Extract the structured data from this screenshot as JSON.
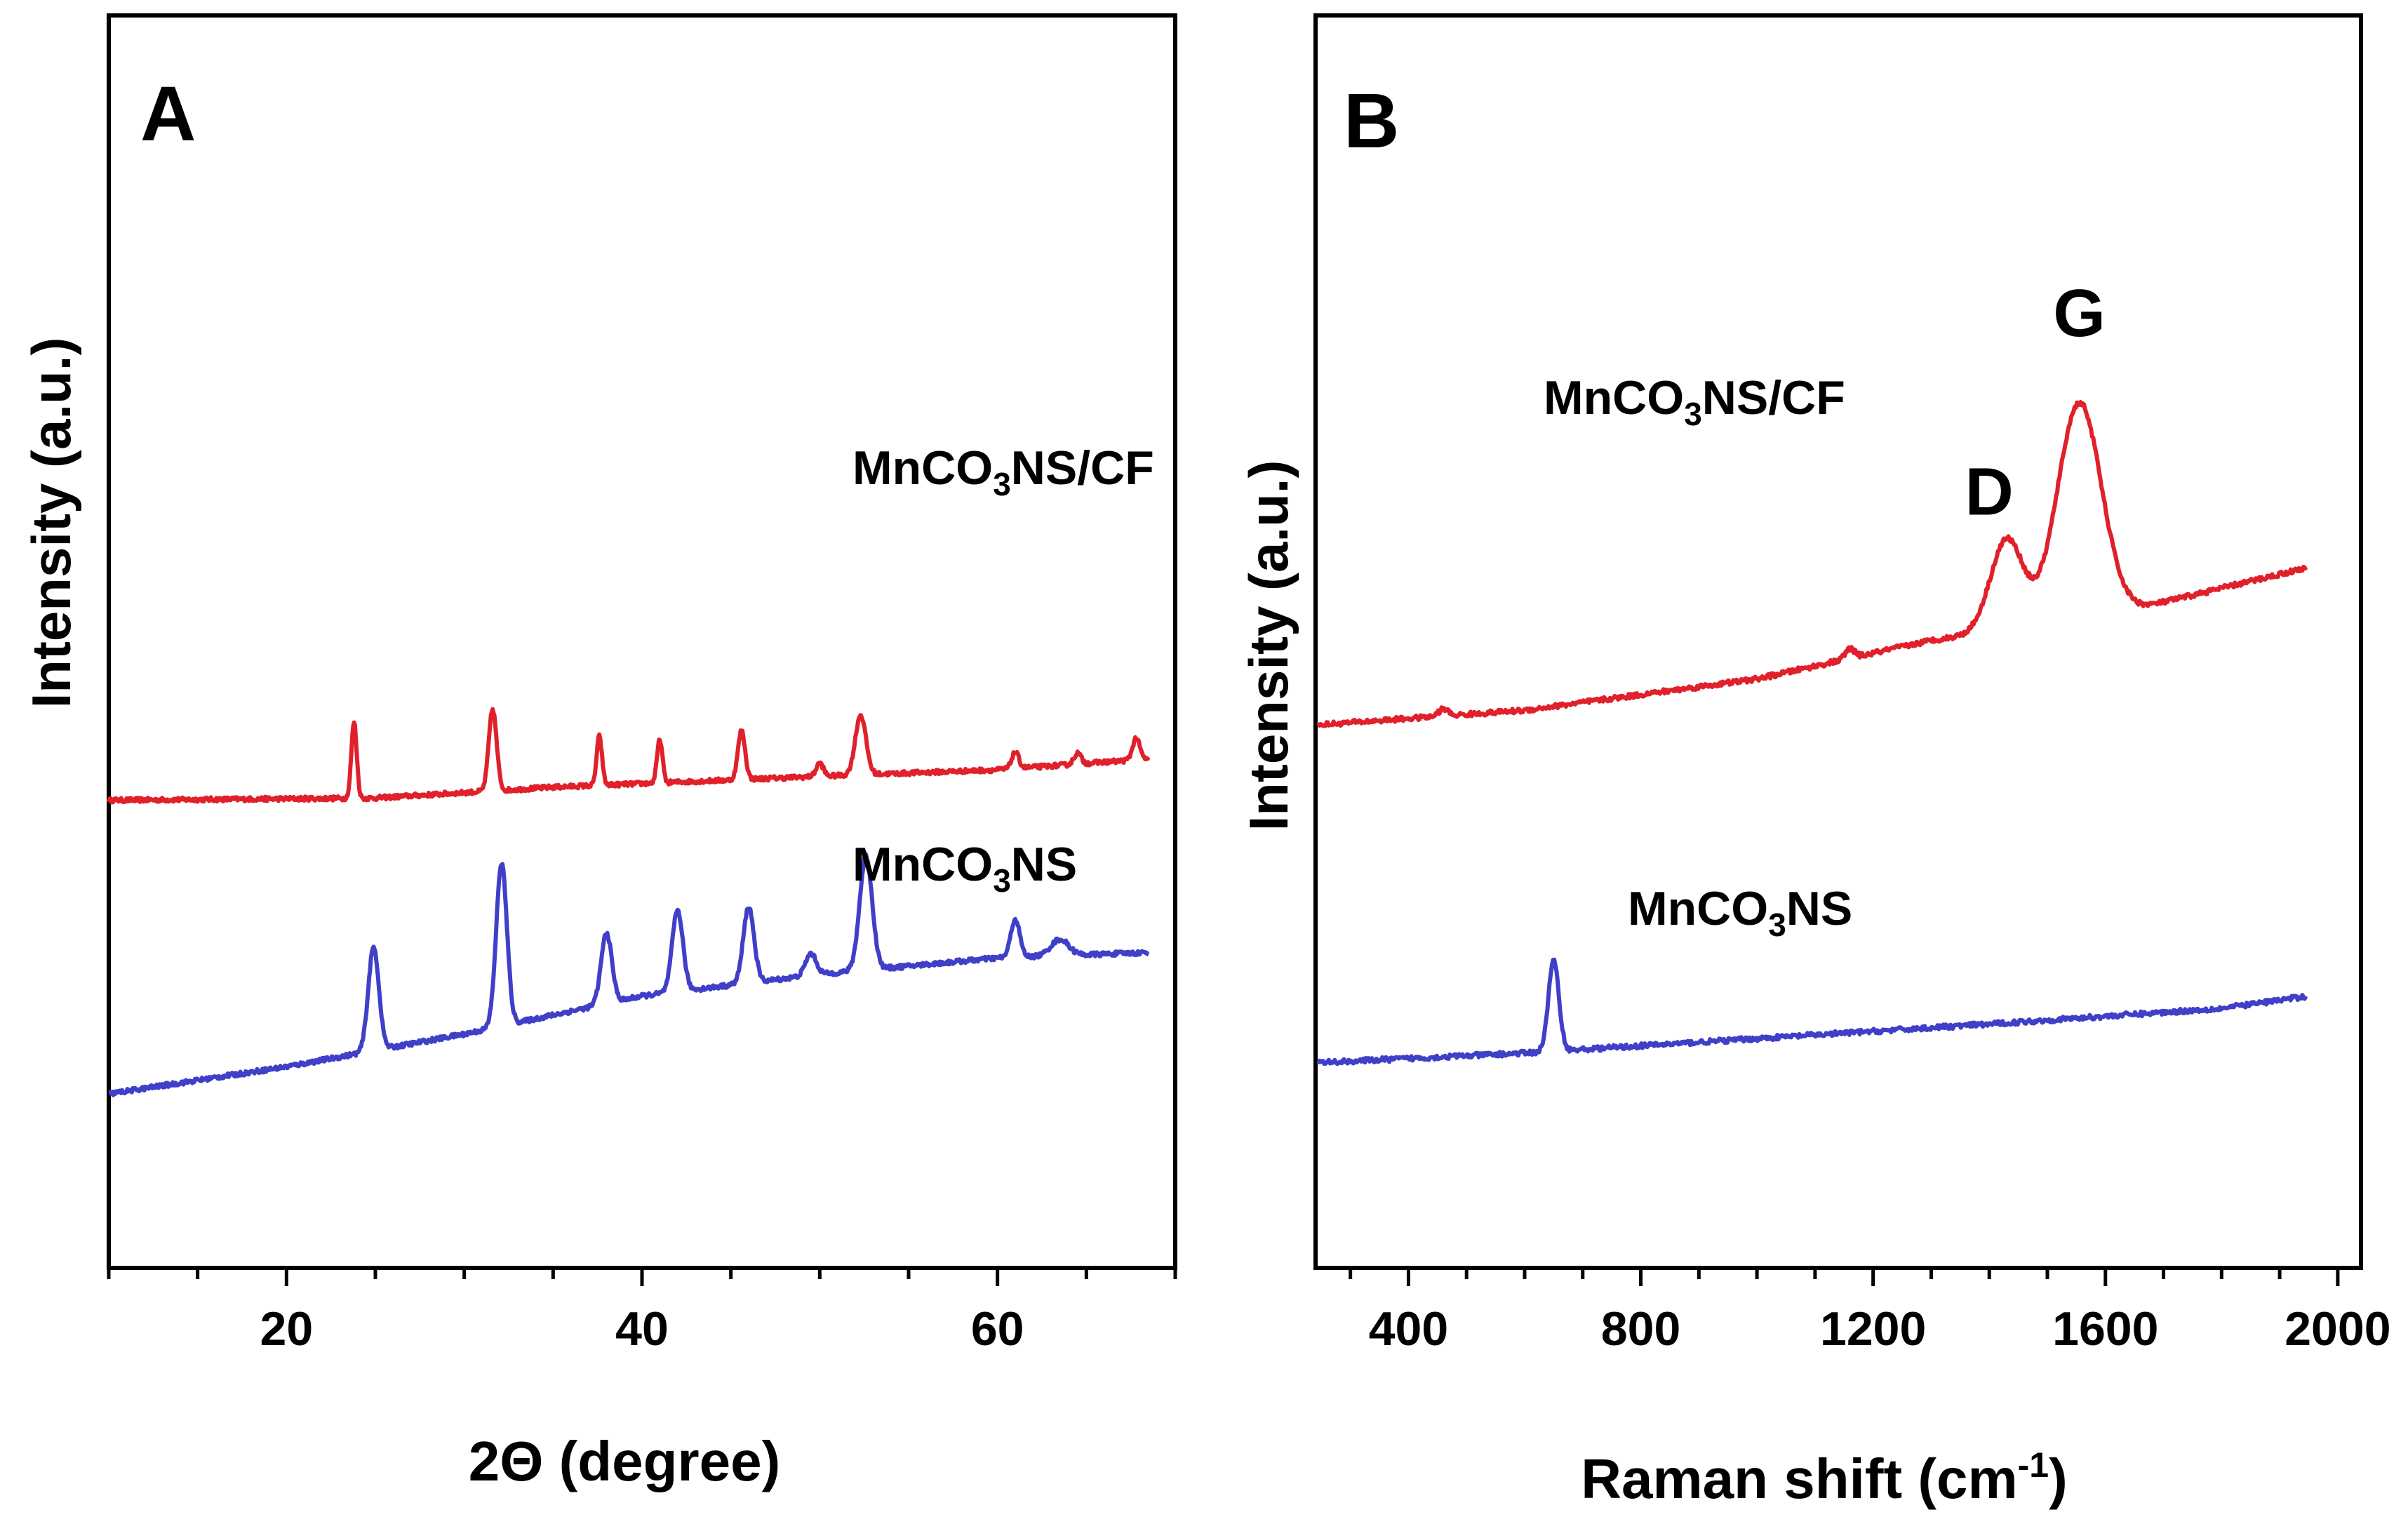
{
  "chart_data": [
    {
      "panel": "A",
      "type": "line",
      "xlabel": "2Θ (degree)",
      "ylabel": "Intensity (a.u.)",
      "xlim": [
        10,
        70
      ],
      "xticks": [
        20,
        40,
        60
      ],
      "xtick_labels": [
        "20",
        "40",
        "60"
      ],
      "yticks": [],
      "colors": {
        "MnCO3NS/CF": "#e0202a",
        "MnCO3NS": "#3f3fc8"
      },
      "series": [
        {
          "name": "MnCO3NS/CF",
          "label_main": "MnCO",
          "label_sub": "3",
          "label_tail": "NS/CF",
          "baseline": [
            [
              10,
              430
            ],
            [
              25,
              432
            ],
            [
              35,
              442
            ],
            [
              50,
              452
            ],
            [
              60,
              458
            ],
            [
              68.5,
              468
            ]
          ],
          "peaks": [
            {
              "x": 23.8,
              "h": 70,
              "w": 0.15
            },
            {
              "x": 31.6,
              "h": 75,
              "w": 0.22
            },
            {
              "x": 37.6,
              "h": 45,
              "w": 0.15
            },
            {
              "x": 41.0,
              "h": 40,
              "w": 0.15
            },
            {
              "x": 45.6,
              "h": 45,
              "w": 0.2
            },
            {
              "x": 50.0,
              "h": 12,
              "w": 0.2
            },
            {
              "x": 52.3,
              "h": 55,
              "w": 0.3
            },
            {
              "x": 61.0,
              "h": 15,
              "w": 0.2
            },
            {
              "x": 64.5,
              "h": 10,
              "w": 0.2
            },
            {
              "x": 67.8,
              "h": 20,
              "w": 0.2
            }
          ]
        },
        {
          "name": "MnCO3NS",
          "label_main": "MnCO",
          "label_sub": "3",
          "label_tail": "NS",
          "baseline": [
            [
              10,
              160
            ],
            [
              20,
              185
            ],
            [
              30,
              215
            ],
            [
              40,
              250
            ],
            [
              50,
              270
            ],
            [
              60,
              285
            ],
            [
              68.5,
              290
            ]
          ],
          "peaks": [
            {
              "x": 24.9,
              "h": 95,
              "w": 0.3
            },
            {
              "x": 32.1,
              "h": 150,
              "w": 0.3
            },
            {
              "x": 38.0,
              "h": 65,
              "w": 0.3
            },
            {
              "x": 42.0,
              "h": 75,
              "w": 0.3
            },
            {
              "x": 46.0,
              "h": 70,
              "w": 0.3
            },
            {
              "x": 49.5,
              "h": 20,
              "w": 0.3
            },
            {
              "x": 52.6,
              "h": 105,
              "w": 0.35
            },
            {
              "x": 61.0,
              "h": 35,
              "w": 0.25
            },
            {
              "x": 63.5,
              "h": 15,
              "w": 0.5
            }
          ]
        }
      ]
    },
    {
      "panel": "B",
      "type": "line",
      "xlabel": "Raman shift (cm",
      "xlabel_sup": "-1",
      "xlabel_end": ")",
      "ylabel": "Intensity (a.u.)",
      "xlim": [
        240,
        2040
      ],
      "xticks": [
        400,
        800,
        1200,
        1600,
        2000
      ],
      "xtick_labels": [
        "400",
        "800",
        "1200",
        "1600",
        "2000"
      ],
      "yticks": [],
      "colors": {
        "MnCO3NS/CF": "#e0202a",
        "MnCO3NS": "#3f3fc8"
      },
      "annotations": [
        {
          "text": "D",
          "x": 1400
        },
        {
          "text": "G",
          "x": 1555
        }
      ],
      "series": [
        {
          "name": "MnCO3NS/CF",
          "label_main": "MnCO",
          "label_sub": "3",
          "label_tail": "NS/CF",
          "baseline": [
            [
              245,
              450
            ],
            [
              600,
              462
            ],
            [
              1000,
              488
            ],
            [
              1300,
              520
            ],
            [
              1600,
              540
            ],
            [
              1945,
              580
            ]
          ],
          "peaks": [
            {
              "x": 1430,
              "h": 75,
              "w": 28
            },
            {
              "x": 1555,
              "h": 180,
              "w": 38
            },
            {
              "x": 1160,
              "h": 8,
              "w": 8
            },
            {
              "x": 460,
              "h": 6,
              "w": 8
            }
          ]
        },
        {
          "name": "MnCO3NS",
          "label_main": "MnCO",
          "label_sub": "3",
          "label_tail": "NS",
          "baseline": [
            [
              245,
              170
            ],
            [
              600,
              178
            ],
            [
              1000,
              190
            ],
            [
              1400,
              202
            ],
            [
              1800,
              215
            ],
            [
              1945,
              225
            ]
          ],
          "peaks": [
            {
              "x": 650,
              "h": 75,
              "w": 9
            }
          ]
        }
      ]
    }
  ]
}
